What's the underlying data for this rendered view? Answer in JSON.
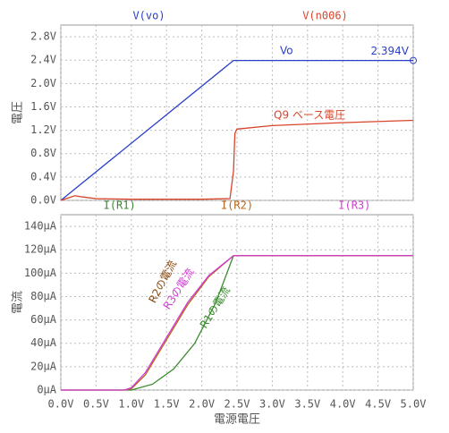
{
  "chart_data": [
    {
      "type": "line",
      "ylabel": "電圧",
      "xlim": [
        0,
        5
      ],
      "xticks": [
        0,
        0.5,
        1,
        1.5,
        2,
        2.5,
        3,
        3.5,
        4,
        4.5,
        5
      ],
      "ylim": [
        0,
        3.0
      ],
      "yticks": [
        {
          "value": 0,
          "label": "0.0V"
        },
        {
          "value": 0.4,
          "label": "0.4V"
        },
        {
          "value": 0.8,
          "label": "0.8V"
        },
        {
          "value": 1.2,
          "label": "1.2V"
        },
        {
          "value": 1.6,
          "label": "1.6V"
        },
        {
          "value": 2.0,
          "label": "2.0V"
        },
        {
          "value": 2.4,
          "label": "2.4V"
        },
        {
          "value": 2.8,
          "label": "2.8V"
        }
      ],
      "grid": true,
      "annotations": [
        "Vo",
        "Q9 ベース電圧"
      ],
      "series": [
        {
          "name": "V(vo)",
          "color": "#2a3fc8",
          "x": [
            0,
            2.45,
            5
          ],
          "values": [
            0,
            2.394,
            2.394
          ],
          "value_labels": [
            null,
            null,
            "2.394V"
          ]
        },
        {
          "name": "V(n006)",
          "color": "#d9452b",
          "x": [
            0,
            0.1,
            0.2,
            0.3,
            0.5,
            1.0,
            2.0,
            2.4,
            2.45,
            2.47,
            2.5,
            3,
            4,
            5
          ],
          "values": [
            0,
            0.04,
            0.08,
            0.06,
            0.03,
            0.02,
            0.02,
            0.03,
            0.5,
            1.15,
            1.22,
            1.28,
            1.33,
            1.37
          ]
        }
      ]
    },
    {
      "type": "line",
      "ylabel": "電流",
      "xlabel": "電源電圧",
      "xlim": [
        0,
        5
      ],
      "xticks": [
        {
          "value": 0,
          "label": "0.0V"
        },
        {
          "value": 0.5,
          "label": "0.5V"
        },
        {
          "value": 1,
          "label": "1.0V"
        },
        {
          "value": 1.5,
          "label": "1.5V"
        },
        {
          "value": 2,
          "label": "2.0V"
        },
        {
          "value": 2.5,
          "label": "2.5V"
        },
        {
          "value": 3,
          "label": "3.0V"
        },
        {
          "value": 3.5,
          "label": "3.5V"
        },
        {
          "value": 4,
          "label": "4.0V"
        },
        {
          "value": 4.5,
          "label": "4.5V"
        },
        {
          "value": 5,
          "label": "5.0V"
        }
      ],
      "ylim": [
        0,
        150
      ],
      "yticks": [
        {
          "value": 0,
          "label": "0µA"
        },
        {
          "value": 20,
          "label": "20µA"
        },
        {
          "value": 40,
          "label": "40µA"
        },
        {
          "value": 60,
          "label": "60µA"
        },
        {
          "value": 80,
          "label": "80µA"
        },
        {
          "value": 100,
          "label": "100µA"
        },
        {
          "value": 120,
          "label": "120µA"
        },
        {
          "value": 140,
          "label": "140µA"
        }
      ],
      "grid": true,
      "annotations": [
        "R2の電流",
        "R3の電流",
        "R1の電流"
      ],
      "series": [
        {
          "name": "I(R1)",
          "color": "#3a8a2e",
          "x": [
            0,
            1.0,
            1.3,
            1.6,
            1.9,
            2.2,
            2.45,
            5
          ],
          "values": [
            0,
            0,
            5,
            18,
            40,
            75,
            115,
            115
          ]
        },
        {
          "name": "I(R2)",
          "color": "#b8651b",
          "x": [
            0,
            0.9,
            1.0,
            1.2,
            1.5,
            1.8,
            2.1,
            2.45,
            5
          ],
          "values": [
            0,
            0,
            1,
            13,
            43,
            73,
            97,
            115,
            115
          ]
        },
        {
          "name": "I(R3)",
          "color": "#d23cd2",
          "x": [
            0,
            0.9,
            1.0,
            1.2,
            1.5,
            1.8,
            2.1,
            2.45,
            5
          ],
          "values": [
            0,
            0,
            2,
            15,
            45,
            75,
            98,
            115,
            115
          ]
        }
      ]
    }
  ]
}
